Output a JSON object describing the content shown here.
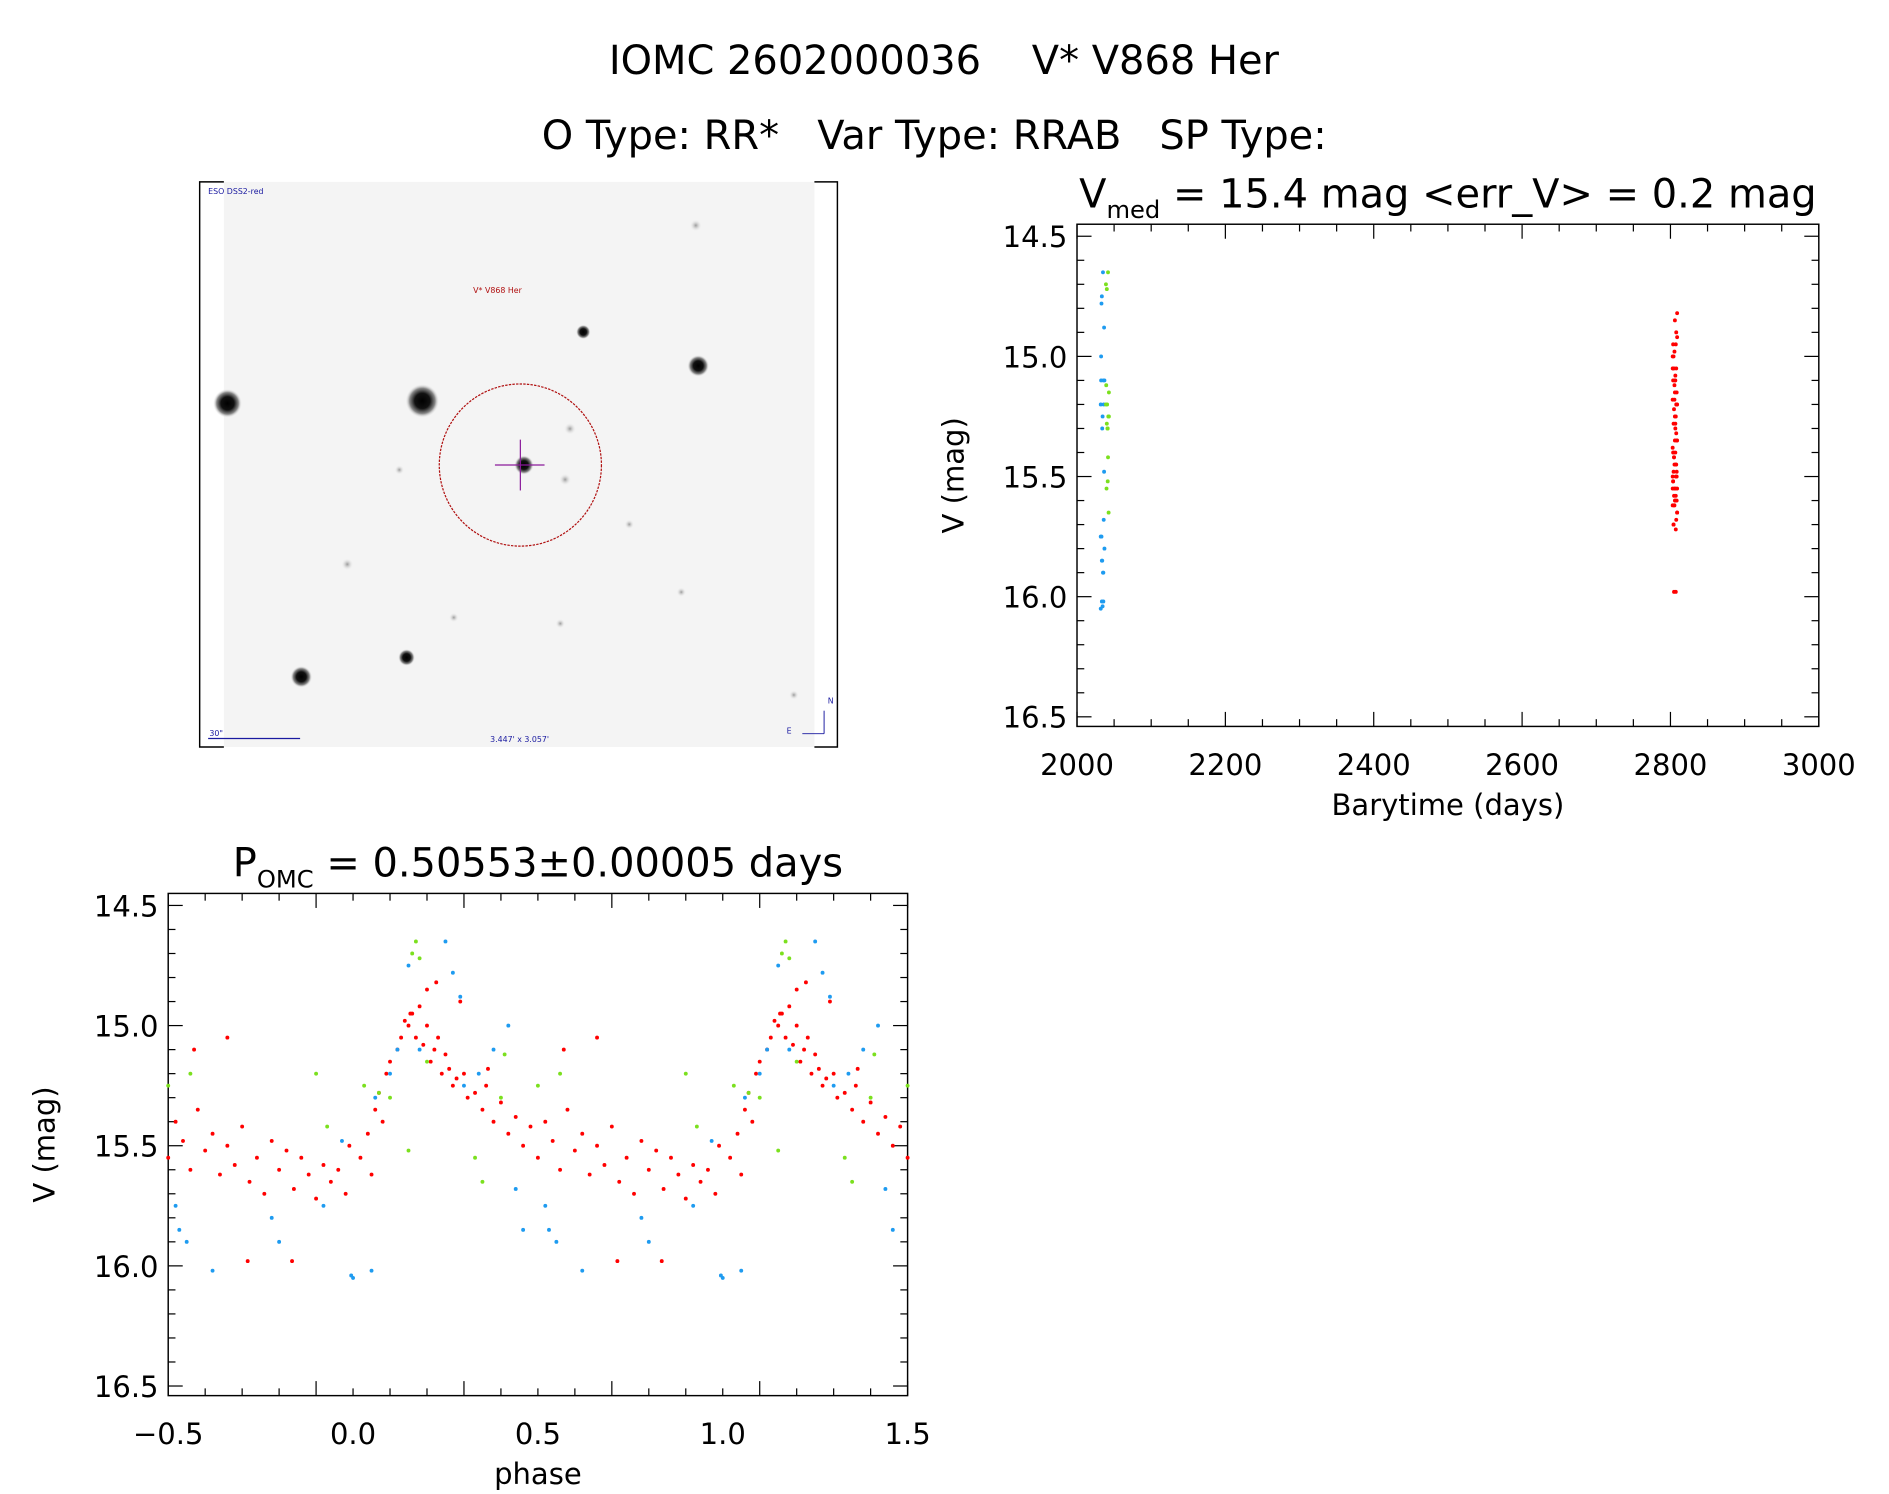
{
  "header": {
    "title": "IOMC 2602000036    V* V868 Her",
    "subtitle": "O Type: RR*   Var Type: RRAB   SP Type:"
  },
  "finder": {
    "survey_label": "ESO DSS2-red",
    "object_label": "V* V868 Her",
    "scale_label": "30\"",
    "fov_label": "3.447' x 3.057'",
    "north_label": "N",
    "east_label": "E",
    "colors": {
      "circle": "#b01010",
      "cross": "#8a1a9a",
      "annotation": "#1a1aa0"
    }
  },
  "chart_data": [
    {
      "type": "scatter",
      "title_main": "V",
      "title_sub": "med",
      "title_rest": " = 15.4 mag <err_V> = 0.2 mag",
      "xlabel": "Barytime (days)",
      "ylabel": "V (mag)",
      "xlim": [
        2000,
        3000
      ],
      "ylim": [
        14.45,
        16.54
      ],
      "y_inverted": true,
      "xticks": [
        "2000",
        "2200",
        "2400",
        "2600",
        "2800",
        "3000"
      ],
      "xtick_values": [
        2000,
        2200,
        2400,
        2600,
        2800,
        3000
      ],
      "yticks": [
        "14.5",
        "15.0",
        "15.5",
        "16.0",
        "16.5"
      ],
      "ytick_values": [
        14.5,
        15.0,
        15.5,
        16.0,
        16.5
      ],
      "series_time_ranges": {
        "red": [
          2803,
          2809
        ],
        "blue": [
          2032,
          2037
        ],
        "green": [
          2039,
          2043
        ]
      }
    },
    {
      "type": "scatter",
      "title_main": "P",
      "title_sub": "OMC",
      "title_rest": " = 0.50553±0.00005 days",
      "xlabel": "phase",
      "ylabel": "V (mag)",
      "xlim": [
        -0.5,
        1.5
      ],
      "ylim": [
        14.45,
        16.54
      ],
      "y_inverted": true,
      "xticks": [
        "−0.5",
        "0.0",
        "0.5",
        "1.0",
        "1.5"
      ],
      "xtick_values": [
        -0.5,
        0.0,
        0.5,
        1.0,
        1.5
      ],
      "yticks": [
        "14.5",
        "15.0",
        "15.5",
        "16.0",
        "16.5"
      ],
      "ytick_values": [
        14.5,
        15.0,
        15.5,
        16.0,
        16.5
      ],
      "series": [
        {
          "name": "red",
          "color": "#ff0000",
          "points": [
            [
              0.02,
              15.55
            ],
            [
              0.04,
              15.45
            ],
            [
              0.05,
              15.62
            ],
            [
              0.06,
              15.35
            ],
            [
              0.07,
              15.28
            ],
            [
              0.08,
              15.4
            ],
            [
              0.09,
              15.2
            ],
            [
              0.1,
              15.15
            ],
            [
              0.12,
              15.1
            ],
            [
              0.13,
              15.05
            ],
            [
              0.14,
              14.98
            ],
            [
              0.15,
              15.0
            ],
            [
              0.16,
              14.95
            ],
            [
              0.17,
              15.05
            ],
            [
              0.18,
              14.92
            ],
            [
              0.19,
              15.08
            ],
            [
              0.2,
              15.0
            ],
            [
              0.21,
              15.15
            ],
            [
              0.22,
              15.1
            ],
            [
              0.23,
              15.05
            ],
            [
              0.24,
              15.2
            ],
            [
              0.25,
              15.12
            ],
            [
              0.26,
              15.18
            ],
            [
              0.27,
              15.25
            ],
            [
              0.28,
              15.22
            ],
            [
              0.3,
              15.2
            ],
            [
              0.31,
              15.3
            ],
            [
              0.33,
              15.28
            ],
            [
              0.35,
              15.35
            ],
            [
              0.36,
              15.25
            ],
            [
              0.38,
              15.4
            ],
            [
              0.4,
              15.32
            ],
            [
              0.42,
              15.45
            ],
            [
              0.44,
              15.38
            ],
            [
              0.46,
              15.5
            ],
            [
              0.48,
              15.42
            ],
            [
              0.5,
              15.55
            ],
            [
              0.52,
              15.4
            ],
            [
              0.54,
              15.48
            ],
            [
              0.56,
              15.6
            ],
            [
              0.58,
              15.35
            ],
            [
              0.6,
              15.52
            ],
            [
              0.62,
              15.45
            ],
            [
              0.64,
              15.62
            ],
            [
              0.66,
              15.5
            ],
            [
              0.68,
              15.58
            ],
            [
              0.7,
              15.42
            ],
            [
              0.72,
              15.65
            ],
            [
              0.74,
              15.55
            ],
            [
              0.76,
              15.7
            ],
            [
              0.78,
              15.48
            ],
            [
              0.8,
              15.6
            ],
            [
              0.82,
              15.52
            ],
            [
              0.84,
              15.68
            ],
            [
              0.86,
              15.55
            ],
            [
              0.88,
              15.62
            ],
            [
              0.9,
              15.72
            ],
            [
              0.92,
              15.58
            ],
            [
              0.94,
              15.65
            ],
            [
              0.96,
              15.6
            ],
            [
              0.98,
              15.7
            ],
            [
              0.99,
              15.5
            ],
            [
              0.2,
              14.85
            ],
            [
              0.155,
              14.95
            ],
            [
              0.29,
              14.9
            ],
            [
              0.365,
              15.18
            ],
            [
              0.66,
              15.05
            ],
            [
              0.715,
              15.98
            ],
            [
              0.835,
              15.98
            ],
            [
              0.225,
              14.82
            ],
            [
              0.57,
              15.1
            ]
          ]
        },
        {
          "name": "blue",
          "color": "#1e9bf0",
          "points": [
            [
              0.0,
              16.05
            ],
            [
              0.05,
              16.02
            ],
            [
              0.15,
              14.75
            ],
            [
              0.18,
              15.1
            ],
            [
              0.25,
              14.65
            ],
            [
              0.27,
              14.78
            ],
            [
              0.29,
              14.88
            ],
            [
              0.3,
              15.25
            ],
            [
              0.42,
              15.0
            ],
            [
              0.44,
              15.68
            ],
            [
              0.46,
              15.85
            ],
            [
              0.52,
              15.75
            ],
            [
              0.55,
              15.9
            ],
            [
              0.62,
              16.02
            ],
            [
              0.78,
              15.8
            ],
            [
              0.8,
              15.9
            ],
            [
              0.92,
              15.75
            ],
            [
              0.97,
              15.48
            ],
            [
              0.995,
              16.04
            ],
            [
              0.12,
              15.1
            ],
            [
              0.1,
              15.2
            ],
            [
              0.06,
              15.3
            ],
            [
              0.34,
              15.2
            ],
            [
              0.38,
              15.1
            ],
            [
              0.53,
              15.85
            ]
          ]
        },
        {
          "name": "green",
          "color": "#7be01e",
          "points": [
            [
              0.16,
              14.7
            ],
            [
              0.17,
              14.65
            ],
            [
              0.18,
              14.72
            ],
            [
              0.2,
              15.15
            ],
            [
              0.15,
              15.52
            ],
            [
              0.33,
              15.55
            ],
            [
              0.35,
              15.65
            ],
            [
              0.4,
              15.3
            ],
            [
              0.41,
              15.12
            ],
            [
              0.5,
              15.25
            ],
            [
              0.56,
              15.2
            ],
            [
              0.9,
              15.2
            ],
            [
              0.93,
              15.42
            ],
            [
              0.07,
              15.28
            ],
            [
              0.03,
              15.25
            ],
            [
              0.1,
              15.3
            ]
          ]
        }
      ]
    }
  ]
}
